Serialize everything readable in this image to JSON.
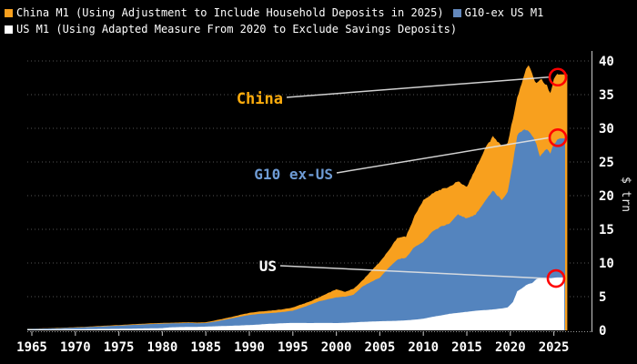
{
  "legend": {
    "items": [
      {
        "label": "China M1 (Using Adjustment to Include Household Deposits in 2025)",
        "color": "#F8A01E"
      },
      {
        "label": "G10-ex US M1",
        "color": "#6388BC"
      },
      {
        "label": "US M1 (Using Adapted Measure From 2020 to Exclude Savings Deposits)",
        "color": "#FFFFFF"
      }
    ]
  },
  "chart_data": {
    "type": "area",
    "stacked": true,
    "title": "",
    "xlabel": "",
    "ylabel": "$ trn",
    "ylim": [
      0,
      40
    ],
    "xlim": [
      1964.5,
      2026.5
    ],
    "grid": "dotted horizontal",
    "legend_position": "top",
    "x_ticks": [
      1965,
      1970,
      1975,
      1980,
      1985,
      1990,
      1995,
      2000,
      2005,
      2010,
      2015,
      2020,
      2025
    ],
    "y_ticks": [
      0,
      5,
      10,
      15,
      20,
      25,
      30,
      35,
      40
    ],
    "x": [
      1965,
      1967,
      1969,
      1971,
      1973,
      1975,
      1977,
      1979,
      1980,
      1981,
      1982,
      1983,
      1984,
      1985,
      1986,
      1987,
      1988,
      1989,
      1990,
      1991,
      1992,
      1993,
      1994,
      1995,
      1996,
      1997,
      1998,
      1999,
      2000,
      2001,
      2002,
      2003,
      2004,
      2005,
      2006,
      2007,
      2008,
      2009,
      2010,
      2011,
      2012,
      2013,
      2014,
      2015,
      2016,
      2017,
      2018,
      2019,
      2019.7,
      2020.3,
      2020.8,
      2021.3,
      2021.8,
      2022.1,
      2022.5,
      2023,
      2023.4,
      2023.8,
      2024.2,
      2024.6,
      2025,
      2025.4,
      2025.7
    ],
    "series": [
      {
        "name": "US M1",
        "color": "#FFFFFF",
        "values": [
          0.12,
          0.14,
          0.16,
          0.18,
          0.2,
          0.22,
          0.26,
          0.3,
          0.33,
          0.45,
          0.48,
          0.5,
          0.52,
          0.55,
          0.6,
          0.64,
          0.68,
          0.73,
          0.78,
          0.85,
          0.95,
          1.0,
          1.07,
          1.1,
          1.1,
          1.08,
          1.1,
          1.1,
          1.08,
          1.12,
          1.18,
          1.25,
          1.3,
          1.35,
          1.38,
          1.42,
          1.48,
          1.58,
          1.72,
          2.0,
          2.2,
          2.45,
          2.6,
          2.75,
          2.9,
          3.0,
          3.1,
          3.25,
          3.4,
          4.2,
          5.8,
          6.2,
          6.7,
          6.9,
          7.0,
          7.6,
          7.8,
          7.8,
          7.8,
          7.75,
          7.8,
          7.85,
          7.85
        ]
      },
      {
        "name": "G10-ex US M1",
        "color": "#5484BE",
        "values": [
          0.1,
          0.14,
          0.2,
          0.28,
          0.38,
          0.48,
          0.57,
          0.65,
          0.67,
          0.58,
          0.58,
          0.6,
          0.53,
          0.53,
          0.68,
          0.88,
          1.1,
          1.32,
          1.5,
          1.57,
          1.57,
          1.62,
          1.67,
          1.82,
          2.25,
          2.72,
          3.2,
          3.5,
          3.82,
          3.88,
          4.12,
          5.25,
          5.9,
          6.45,
          7.92,
          9.08,
          9.32,
          10.82,
          11.38,
          12.6,
          13.2,
          13.45,
          14.6,
          13.85,
          14.3,
          16.0,
          17.6,
          16.15,
          17.1,
          20.8,
          23.2,
          23.4,
          23.1,
          22.7,
          22.0,
          20.1,
          18.0,
          18.7,
          19.1,
          18.55,
          19.8,
          20.45,
          20.65
        ]
      },
      {
        "name": "China M1",
        "color": "#F8A01E",
        "values": [
          0.03,
          0.04,
          0.05,
          0.06,
          0.08,
          0.09,
          0.1,
          0.11,
          0.1,
          0.1,
          0.1,
          0.1,
          0.1,
          0.12,
          0.17,
          0.2,
          0.22,
          0.27,
          0.32,
          0.34,
          0.36,
          0.38,
          0.41,
          0.48,
          0.5,
          0.5,
          0.6,
          0.9,
          1.2,
          0.7,
          0.9,
          0.9,
          1.6,
          2.4,
          2.5,
          3.2,
          3.1,
          4.6,
          6.2,
          5.7,
          5.5,
          5.5,
          4.9,
          4.6,
          6.8,
          7.8,
          8.1,
          8.0,
          7.4,
          6.5,
          5.8,
          6.9,
          9.0,
          10.0,
          9.0,
          8.9,
          11.6,
          10.3,
          9.4,
          8.9,
          9.6,
          10.0,
          9.5
        ]
      }
    ],
    "annotations": [
      {
        "label": "China",
        "color": "#FFAD0D",
        "marker_value": 37.6
      },
      {
        "label": "G10 ex-US",
        "color": "#6E9BD4",
        "marker_value": 28.6
      },
      {
        "label": "US",
        "color": "#FFFFFF",
        "marker_value": 7.7
      }
    ],
    "marker_color": "#FF0000"
  }
}
